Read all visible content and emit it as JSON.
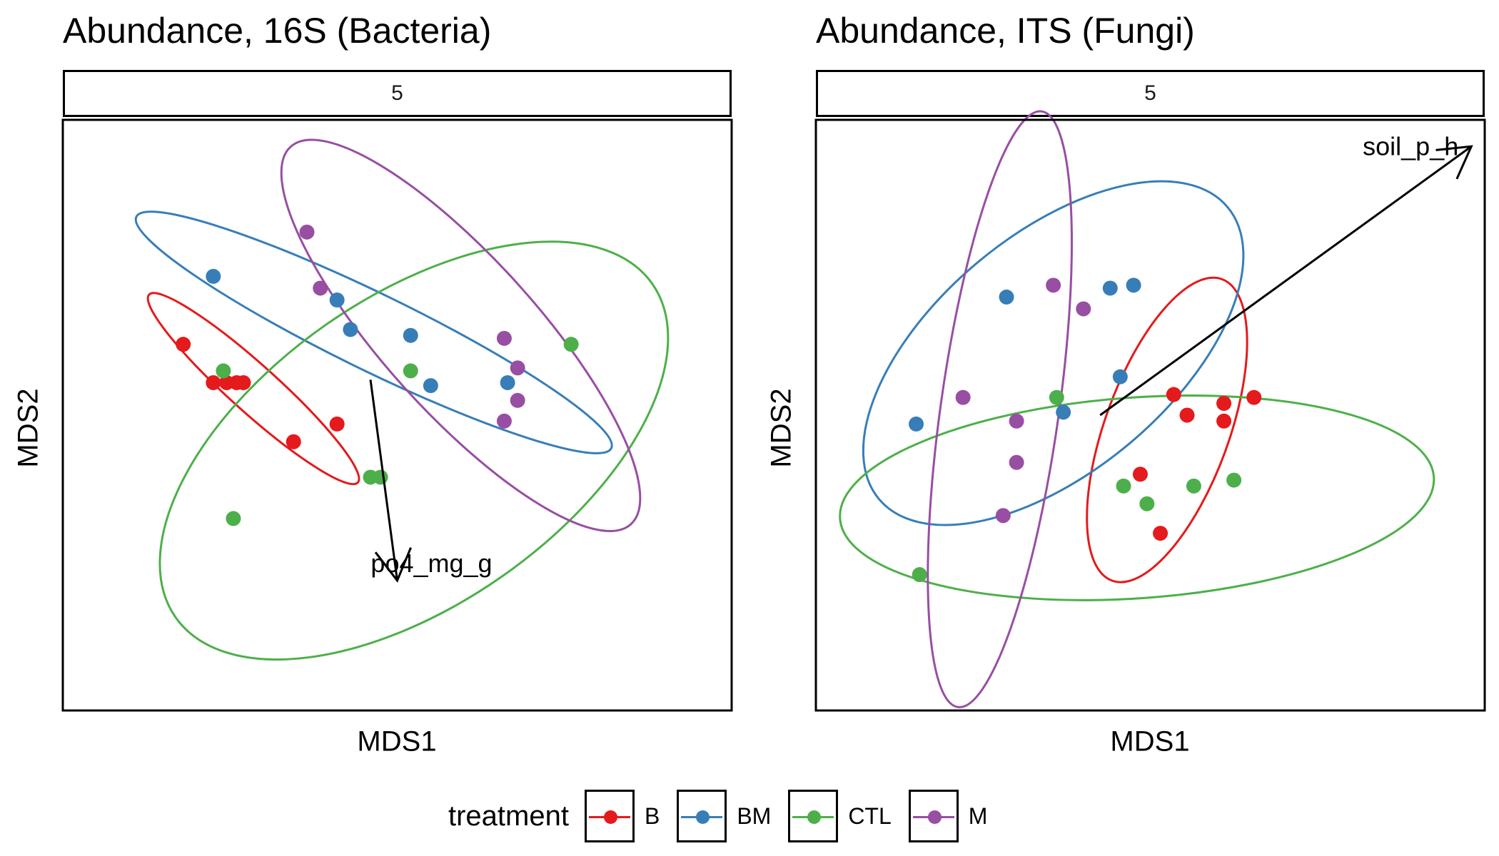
{
  "palette": {
    "B": "#e41a1c",
    "BM": "#377eb8",
    "CTL": "#4daf4a",
    "M": "#984ea3"
  },
  "legend": {
    "title": "treatment",
    "items": [
      "B",
      "BM",
      "CTL",
      "M"
    ]
  },
  "chart_data": [
    {
      "type": "scatter",
      "title": "Abundance, 16S (Bacteria)",
      "facet_label": "5",
      "xlabel": "MDS1",
      "ylabel": "MDS2",
      "xlim": [
        -1.0,
        1.0
      ],
      "ylim": [
        -1.0,
        1.0
      ],
      "grid": false,
      "legend_position": "bottom",
      "series": [
        {
          "name": "B",
          "color": "#e41a1c",
          "points": [
            [
              -0.64,
              0.24
            ],
            [
              -0.55,
              0.11
            ],
            [
              -0.51,
              0.11
            ],
            [
              -0.48,
              0.11
            ],
            [
              -0.46,
              0.11
            ],
            [
              -0.31,
              -0.09
            ],
            [
              -0.18,
              -0.03
            ]
          ]
        },
        {
          "name": "BM",
          "color": "#377eb8",
          "points": [
            [
              -0.55,
              0.47
            ],
            [
              -0.18,
              0.39
            ],
            [
              -0.14,
              0.29
            ],
            [
              0.04,
              0.27
            ],
            [
              0.1,
              0.1
            ],
            [
              0.33,
              0.11
            ]
          ]
        },
        {
          "name": "CTL",
          "color": "#4daf4a",
          "points": [
            [
              -0.52,
              0.15
            ],
            [
              0.04,
              0.15
            ],
            [
              0.52,
              0.24
            ],
            [
              -0.08,
              -0.21
            ],
            [
              -0.05,
              -0.21
            ],
            [
              -0.49,
              -0.35
            ]
          ]
        },
        {
          "name": "M",
          "color": "#984ea3",
          "points": [
            [
              -0.27,
              0.62
            ],
            [
              -0.23,
              0.43
            ],
            [
              0.32,
              0.26
            ],
            [
              0.36,
              0.16
            ],
            [
              0.36,
              0.05
            ],
            [
              0.32,
              -0.02
            ]
          ]
        }
      ],
      "ellipses": [
        {
          "group": "B",
          "center": [
            -0.43,
            0.09
          ],
          "axes": [
            0.42,
            0.08
          ],
          "angle_deg": -42
        },
        {
          "group": "BM",
          "center": [
            -0.07,
            0.28
          ],
          "axes": [
            0.79,
            0.13
          ],
          "angle_deg": -26
        },
        {
          "group": "CTL",
          "center": [
            0.05,
            -0.12
          ],
          "axes": [
            0.87,
            0.52
          ],
          "angle_deg": 35
        },
        {
          "group": "M",
          "center": [
            0.19,
            0.27
          ],
          "axes": [
            0.76,
            0.26
          ],
          "angle_deg": -48
        }
      ],
      "vectors": [
        {
          "label": "po4_mg_g",
          "from": [
            -0.08,
            0.12
          ],
          "to": [
            0.0,
            -0.56
          ]
        }
      ]
    },
    {
      "type": "scatter",
      "title": "Abundance, ITS (Fungi)",
      "facet_label": "5",
      "xlabel": "MDS1",
      "ylabel": "MDS2",
      "xlim": [
        -1.0,
        1.0
      ],
      "ylim": [
        -1.0,
        1.0
      ],
      "grid": false,
      "legend_position": "bottom",
      "series": [
        {
          "name": "B",
          "color": "#e41a1c",
          "points": [
            [
              0.07,
              0.07
            ],
            [
              0.11,
              0.0
            ],
            [
              0.22,
              0.04
            ],
            [
              0.31,
              0.06
            ],
            [
              0.22,
              -0.02
            ],
            [
              -0.03,
              -0.2
            ],
            [
              0.03,
              -0.4
            ]
          ]
        },
        {
          "name": "BM",
          "color": "#377eb8",
          "points": [
            [
              -0.43,
              0.4
            ],
            [
              -0.12,
              0.43
            ],
            [
              -0.05,
              0.44
            ],
            [
              -0.09,
              0.13
            ],
            [
              -0.26,
              0.01
            ],
            [
              -0.7,
              -0.03
            ]
          ]
        },
        {
          "name": "CTL",
          "color": "#4daf4a",
          "points": [
            [
              -0.28,
              0.06
            ],
            [
              -0.08,
              -0.24
            ],
            [
              -0.01,
              -0.3
            ],
            [
              0.13,
              -0.24
            ],
            [
              0.25,
              -0.22
            ],
            [
              -0.69,
              -0.54
            ]
          ]
        },
        {
          "name": "M",
          "color": "#984ea3",
          "points": [
            [
              -0.29,
              0.44
            ],
            [
              -0.2,
              0.36
            ],
            [
              -0.56,
              0.06
            ],
            [
              -0.4,
              -0.02
            ],
            [
              -0.4,
              -0.16
            ],
            [
              -0.44,
              -0.34
            ]
          ]
        }
      ],
      "ellipses": [
        {
          "group": "B",
          "center": [
            0.05,
            -0.05
          ],
          "axes": [
            0.48,
            0.21
          ],
          "angle_deg": 70
        },
        {
          "group": "BM",
          "center": [
            -0.29,
            0.21
          ],
          "axes": [
            0.68,
            0.4
          ],
          "angle_deg": 40
        },
        {
          "group": "CTL",
          "center": [
            -0.04,
            -0.28
          ],
          "axes": [
            0.89,
            0.34
          ],
          "angle_deg": 4
        },
        {
          "group": "M",
          "center": [
            -0.45,
            0.02
          ],
          "axes": [
            0.9,
            0.2
          ],
          "angle_deg": 82
        }
      ],
      "vectors": [
        {
          "label": "soil_p_h",
          "from": [
            -0.15,
            0.0
          ],
          "to": [
            0.96,
            0.91
          ]
        }
      ]
    }
  ]
}
